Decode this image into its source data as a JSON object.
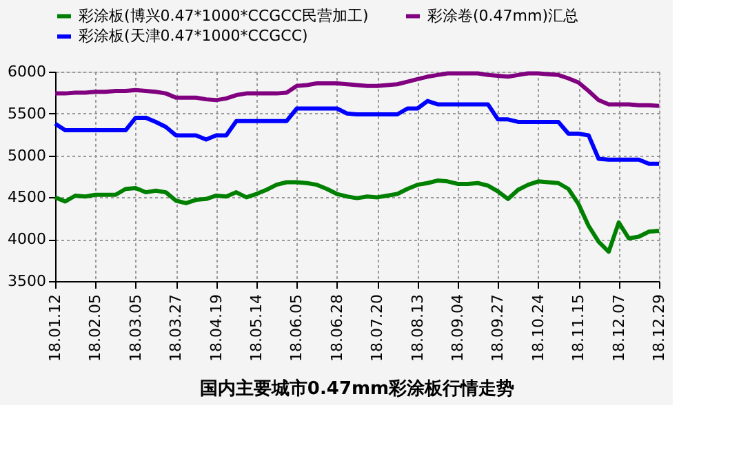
{
  "chart_data": {
    "type": "line",
    "title": "国内主要城市0.47mm彩涂板行情走势",
    "categories": [
      "18.01.12",
      null,
      null,
      null,
      "18.02.05",
      null,
      null,
      null,
      "18.03.05",
      null,
      null,
      null,
      "18.03.27",
      null,
      null,
      null,
      "18.04.19",
      null,
      null,
      null,
      "18.05.14",
      null,
      null,
      null,
      "18.06.05",
      null,
      null,
      null,
      "18.06.28",
      null,
      null,
      null,
      "18.07.20",
      null,
      null,
      null,
      "18.08.13",
      null,
      null,
      null,
      "18.09.04",
      null,
      null,
      null,
      "18.09.27",
      null,
      null,
      null,
      "18.10.24",
      null,
      null,
      null,
      "18.11.15",
      null,
      null,
      null,
      "18.12.07",
      null,
      null,
      null,
      "18.12.29"
    ],
    "ylim": [
      3500,
      6000
    ],
    "yticks": [
      3500,
      4000,
      4500,
      5000,
      5500,
      6000
    ],
    "grid": true,
    "legend": "top",
    "marker": "none",
    "line_style": "solid",
    "series": [
      {
        "name": "彩涂板(博兴0.47*1000*CCGCC民营加工)",
        "color": "#008000",
        "values": [
          4500,
          4450,
          4520,
          4510,
          4530,
          4530,
          4530,
          4600,
          4610,
          4560,
          4580,
          4560,
          4460,
          4430,
          4470,
          4480,
          4520,
          4510,
          4560,
          4500,
          4540,
          4590,
          4650,
          4680,
          4680,
          4670,
          4650,
          4600,
          4540,
          4510,
          4490,
          4510,
          4500,
          4520,
          4540,
          4600,
          4650,
          4670,
          4700,
          4690,
          4660,
          4660,
          4670,
          4640,
          4570,
          4480,
          4590,
          4650,
          4690,
          4680,
          4670,
          4600,
          4420,
          4160,
          3970,
          3850,
          4200,
          4010,
          4030,
          4090,
          4100
        ]
      },
      {
        "name": "彩涂卷(0.47mm)汇总",
        "color": "#800080",
        "values": [
          5740,
          5740,
          5750,
          5750,
          5760,
          5760,
          5770,
          5770,
          5780,
          5770,
          5760,
          5740,
          5690,
          5690,
          5690,
          5670,
          5660,
          5680,
          5720,
          5740,
          5740,
          5740,
          5740,
          5750,
          5830,
          5840,
          5860,
          5860,
          5860,
          5850,
          5840,
          5830,
          5830,
          5840,
          5850,
          5880,
          5910,
          5940,
          5960,
          5980,
          5980,
          5980,
          5980,
          5960,
          5950,
          5940,
          5960,
          5980,
          5980,
          5970,
          5960,
          5920,
          5870,
          5770,
          5660,
          5610,
          5610,
          5610,
          5600,
          5600,
          5590
        ]
      },
      {
        "name": "彩涂板(天津0.47*1000*CCGCC)",
        "color": "#0000ff",
        "values": [
          5380,
          5300,
          5300,
          5300,
          5300,
          5300,
          5300,
          5300,
          5450,
          5450,
          5400,
          5340,
          5240,
          5240,
          5240,
          5190,
          5240,
          5240,
          5410,
          5410,
          5410,
          5410,
          5410,
          5410,
          5560,
          5560,
          5560,
          5560,
          5560,
          5500,
          5490,
          5490,
          5490,
          5490,
          5490,
          5560,
          5560,
          5650,
          5610,
          5610,
          5610,
          5610,
          5610,
          5610,
          5430,
          5430,
          5400,
          5400,
          5400,
          5400,
          5400,
          5260,
          5260,
          5240,
          4960,
          4950,
          4950,
          4950,
          4950,
          4900,
          4900
        ]
      }
    ]
  }
}
